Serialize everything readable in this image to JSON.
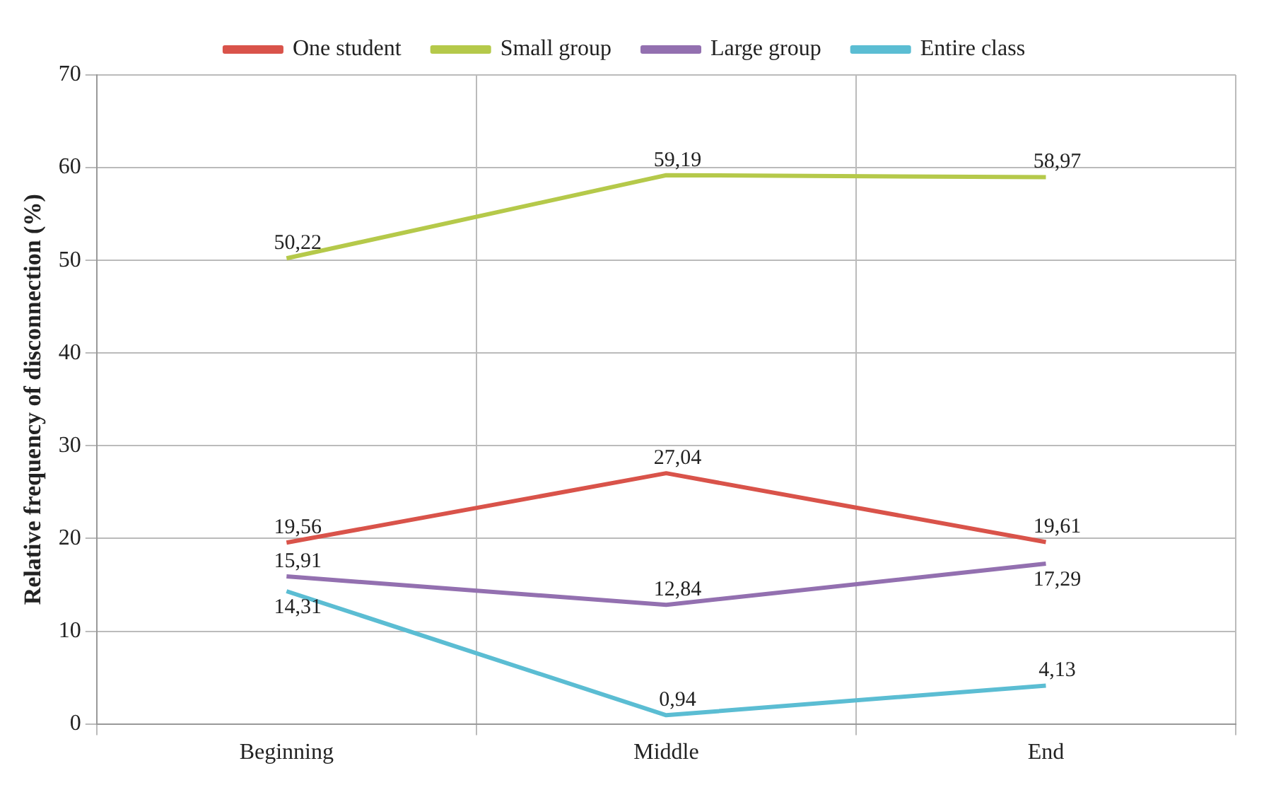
{
  "chart_data": {
    "type": "line",
    "ylabel": "Relative frequency of disconnection (%)",
    "categories": [
      "Beginning",
      "Middle",
      "End"
    ],
    "series": [
      {
        "name": "One student",
        "color": "#d9534a",
        "values": [
          19.56,
          27.04,
          19.61
        ],
        "value_labels": [
          "19,56",
          "27,04",
          "19,61"
        ]
      },
      {
        "name": "Small group",
        "color": "#b5c94a",
        "values": [
          50.22,
          59.19,
          58.97
        ],
        "value_labels": [
          "50,22",
          "59,19",
          "58,97"
        ]
      },
      {
        "name": "Large group",
        "color": "#9370b0",
        "values": [
          15.91,
          12.84,
          17.29
        ],
        "value_labels": [
          "15,91",
          "12,84",
          "17,29"
        ]
      },
      {
        "name": "Entire class",
        "color": "#5bbdd3",
        "values": [
          14.31,
          0.94,
          4.13
        ],
        "value_labels": [
          "14,31",
          "0,94",
          "4,13"
        ]
      }
    ],
    "ylim": [
      0,
      70
    ],
    "yticks": [
      0,
      10,
      20,
      30,
      40,
      50,
      60,
      70
    ],
    "grid": true,
    "legend": "top",
    "marker": "none",
    "line_style": "solid"
  }
}
